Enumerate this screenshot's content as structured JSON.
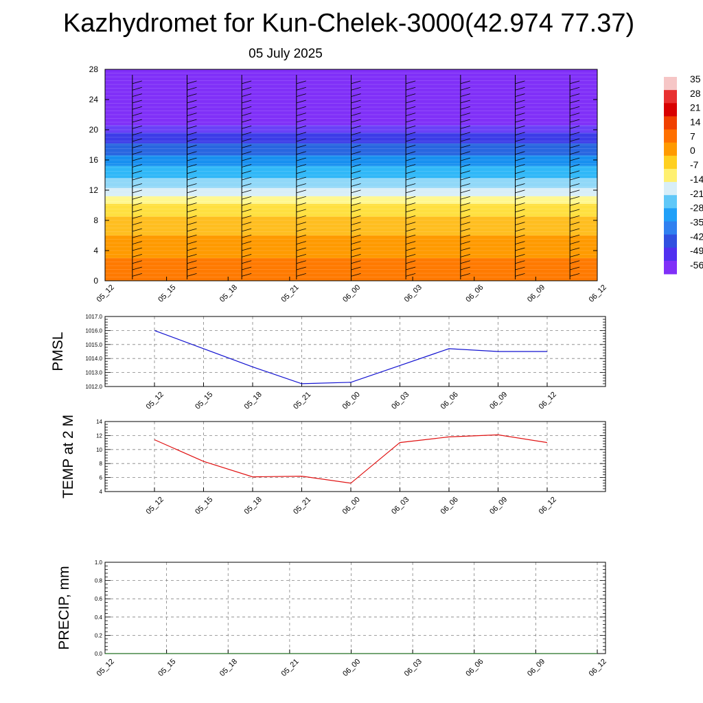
{
  "title": "Kazhydromet for Kun-Chelek-3000(42.974 77.37)",
  "subtitle": "05 July 2025",
  "colors": {
    "pmsl_line": "#1010d0",
    "temp_line": "#e01010",
    "precip_line": "#207020",
    "grid": "#808080"
  },
  "chart_data": [
    {
      "name": "cross-section",
      "type": "heatmap",
      "x_ticks": [
        "05_12",
        "05_15",
        "05_18",
        "05_21",
        "06_00",
        "06_03",
        "06_06",
        "06_09",
        "06_12"
      ],
      "y_ticks": [
        0,
        4,
        8,
        12,
        16,
        20,
        24,
        28
      ],
      "ylim": [
        0,
        28
      ],
      "colorbar_labels": [
        "35",
        "28",
        "21",
        "14",
        "7",
        "0",
        "-7",
        "-14",
        "-21",
        "-28",
        "-35",
        "-42",
        "-49",
        "-56"
      ],
      "color_bands": [
        {
          "from": 0,
          "to": 3,
          "color": "#ff7a00"
        },
        {
          "from": 3,
          "to": 6,
          "color": "#ff9a00"
        },
        {
          "from": 6,
          "to": 8.5,
          "color": "#ffbe20"
        },
        {
          "from": 8.5,
          "to": 10.2,
          "color": "#ffe040"
        },
        {
          "from": 10.2,
          "to": 11.2,
          "color": "#fff890"
        },
        {
          "from": 11.2,
          "to": 12.3,
          "color": "#d8eef8"
        },
        {
          "from": 12.3,
          "to": 13.6,
          "color": "#90d8f8"
        },
        {
          "from": 13.6,
          "to": 15.2,
          "color": "#30b8f8"
        },
        {
          "from": 15.2,
          "to": 16.6,
          "color": "#1890f0"
        },
        {
          "from": 16.6,
          "to": 18.2,
          "color": "#2866e0"
        },
        {
          "from": 18.2,
          "to": 19.6,
          "color": "#3c3ce8"
        },
        {
          "from": 19.6,
          "to": 20.6,
          "color": "#6a40f8"
        },
        {
          "from": 20.6,
          "to": 28,
          "color": "#8030f8"
        }
      ],
      "colorbar_colors": [
        "#f6c6c6",
        "#e83030",
        "#d80000",
        "#f04000",
        "#ff7000",
        "#ff9a00",
        "#ffd020",
        "#fff070",
        "#d8eef8",
        "#60c8f8",
        "#20a0f8",
        "#3080f0",
        "#3050e0",
        "#5030f0",
        "#8030f8"
      ]
    },
    {
      "name": "pmsl",
      "type": "line",
      "ylabel": "PMSL",
      "ylim": [
        1012.0,
        1017.0
      ],
      "y_ticks": [
        "1012.0",
        "1013.0",
        "1014.0",
        "1015.0",
        "1016.0",
        "1017.0"
      ],
      "x": [
        "05_12",
        "05_15",
        "05_18",
        "05_21",
        "06_00",
        "06_03",
        "06_06",
        "06_09",
        "06_12"
      ],
      "values": [
        1016.0,
        1014.7,
        1013.4,
        1012.2,
        1012.3,
        1013.5,
        1014.7,
        1014.5,
        1014.5
      ]
    },
    {
      "name": "temp",
      "type": "line",
      "ylabel": "TEMP at 2 M",
      "ylim": [
        4,
        14
      ],
      "y_ticks": [
        "4",
        "6",
        "8",
        "10",
        "12",
        "14"
      ],
      "x": [
        "05_12",
        "05_15",
        "05_18",
        "05_21",
        "06_00",
        "06_03",
        "06_06",
        "06_09",
        "06_12"
      ],
      "values": [
        11.4,
        8.3,
        6.1,
        6.2,
        5.2,
        11.0,
        11.8,
        12.1,
        11.0
      ]
    },
    {
      "name": "precip",
      "type": "line",
      "ylabel": "PRECIP, mm",
      "ylim": [
        0.0,
        1.0
      ],
      "y_ticks": [
        "0.0",
        "0.2",
        "0.4",
        "0.6",
        "0.8",
        "1.0"
      ],
      "x": [
        "05_12",
        "05_15",
        "05_18",
        "05_21",
        "06_00",
        "06_03",
        "06_06",
        "06_09",
        "06_12"
      ],
      "values": [
        0,
        0,
        0,
        0,
        0,
        0,
        0,
        0,
        0
      ]
    }
  ]
}
